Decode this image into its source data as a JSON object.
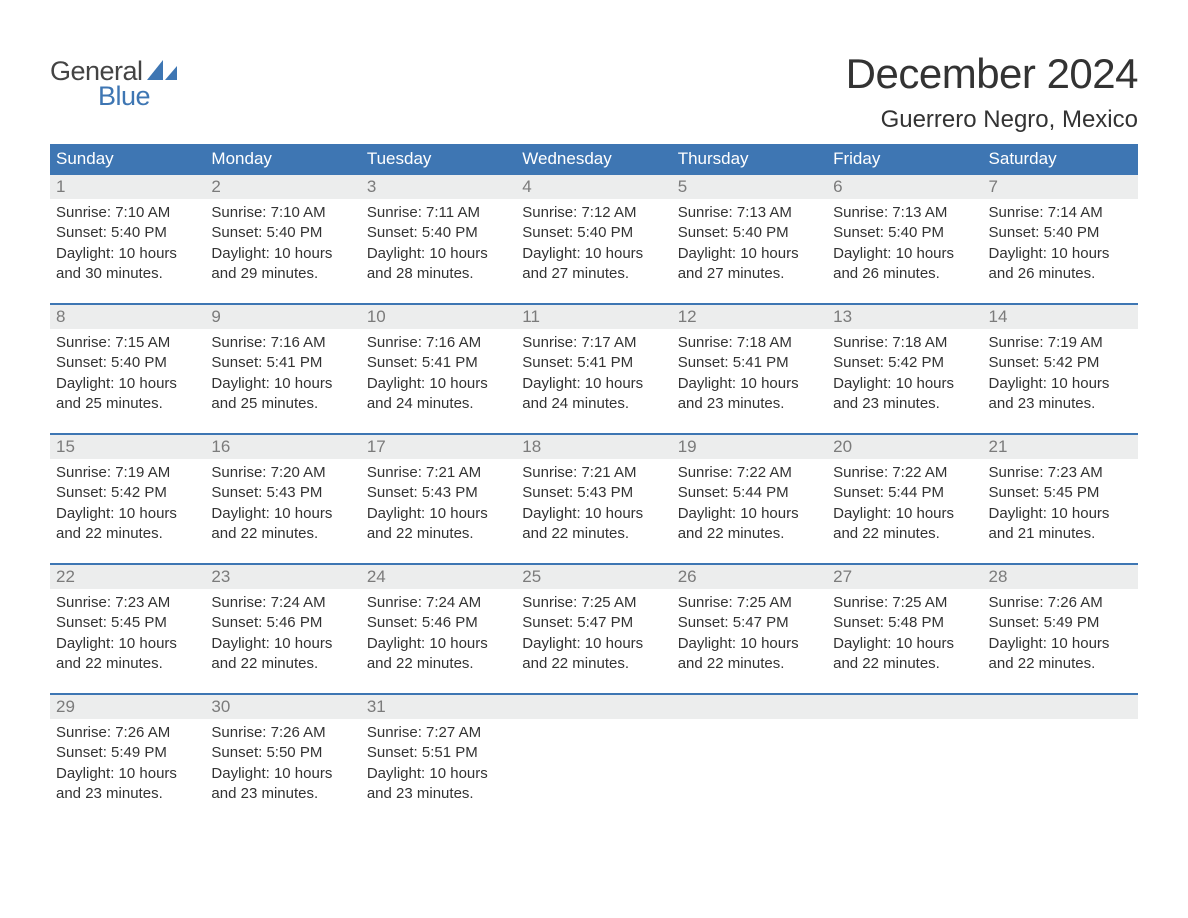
{
  "brand": {
    "text_general": "General",
    "text_blue": "Blue",
    "sail_color": "#3e76b3",
    "text_general_color": "#444444",
    "text_blue_color": "#3e76b3"
  },
  "header": {
    "month_title": "December 2024",
    "location": "Guerrero Negro, Mexico",
    "title_fontsize": 42,
    "location_fontsize": 24,
    "text_color": "#333333"
  },
  "calendar": {
    "header_bg": "#3e76b3",
    "header_text_color": "#ffffff",
    "daynum_bg": "#eceded",
    "daynum_color": "#7b7b7b",
    "row_border_color": "#3e76b3",
    "body_text_color": "#333333",
    "body_fontsize": 15,
    "weekday_fontsize": 17,
    "weekdays": [
      "Sunday",
      "Monday",
      "Tuesday",
      "Wednesday",
      "Thursday",
      "Friday",
      "Saturday"
    ],
    "weeks": [
      [
        {
          "num": "1",
          "sunrise": "Sunrise: 7:10 AM",
          "sunset": "Sunset: 5:40 PM",
          "day1": "Daylight: 10 hours",
          "day2": "and 30 minutes."
        },
        {
          "num": "2",
          "sunrise": "Sunrise: 7:10 AM",
          "sunset": "Sunset: 5:40 PM",
          "day1": "Daylight: 10 hours",
          "day2": "and 29 minutes."
        },
        {
          "num": "3",
          "sunrise": "Sunrise: 7:11 AM",
          "sunset": "Sunset: 5:40 PM",
          "day1": "Daylight: 10 hours",
          "day2": "and 28 minutes."
        },
        {
          "num": "4",
          "sunrise": "Sunrise: 7:12 AM",
          "sunset": "Sunset: 5:40 PM",
          "day1": "Daylight: 10 hours",
          "day2": "and 27 minutes."
        },
        {
          "num": "5",
          "sunrise": "Sunrise: 7:13 AM",
          "sunset": "Sunset: 5:40 PM",
          "day1": "Daylight: 10 hours",
          "day2": "and 27 minutes."
        },
        {
          "num": "6",
          "sunrise": "Sunrise: 7:13 AM",
          "sunset": "Sunset: 5:40 PM",
          "day1": "Daylight: 10 hours",
          "day2": "and 26 minutes."
        },
        {
          "num": "7",
          "sunrise": "Sunrise: 7:14 AM",
          "sunset": "Sunset: 5:40 PM",
          "day1": "Daylight: 10 hours",
          "day2": "and 26 minutes."
        }
      ],
      [
        {
          "num": "8",
          "sunrise": "Sunrise: 7:15 AM",
          "sunset": "Sunset: 5:40 PM",
          "day1": "Daylight: 10 hours",
          "day2": "and 25 minutes."
        },
        {
          "num": "9",
          "sunrise": "Sunrise: 7:16 AM",
          "sunset": "Sunset: 5:41 PM",
          "day1": "Daylight: 10 hours",
          "day2": "and 25 minutes."
        },
        {
          "num": "10",
          "sunrise": "Sunrise: 7:16 AM",
          "sunset": "Sunset: 5:41 PM",
          "day1": "Daylight: 10 hours",
          "day2": "and 24 minutes."
        },
        {
          "num": "11",
          "sunrise": "Sunrise: 7:17 AM",
          "sunset": "Sunset: 5:41 PM",
          "day1": "Daylight: 10 hours",
          "day2": "and 24 minutes."
        },
        {
          "num": "12",
          "sunrise": "Sunrise: 7:18 AM",
          "sunset": "Sunset: 5:41 PM",
          "day1": "Daylight: 10 hours",
          "day2": "and 23 minutes."
        },
        {
          "num": "13",
          "sunrise": "Sunrise: 7:18 AM",
          "sunset": "Sunset: 5:42 PM",
          "day1": "Daylight: 10 hours",
          "day2": "and 23 minutes."
        },
        {
          "num": "14",
          "sunrise": "Sunrise: 7:19 AM",
          "sunset": "Sunset: 5:42 PM",
          "day1": "Daylight: 10 hours",
          "day2": "and 23 minutes."
        }
      ],
      [
        {
          "num": "15",
          "sunrise": "Sunrise: 7:19 AM",
          "sunset": "Sunset: 5:42 PM",
          "day1": "Daylight: 10 hours",
          "day2": "and 22 minutes."
        },
        {
          "num": "16",
          "sunrise": "Sunrise: 7:20 AM",
          "sunset": "Sunset: 5:43 PM",
          "day1": "Daylight: 10 hours",
          "day2": "and 22 minutes."
        },
        {
          "num": "17",
          "sunrise": "Sunrise: 7:21 AM",
          "sunset": "Sunset: 5:43 PM",
          "day1": "Daylight: 10 hours",
          "day2": "and 22 minutes."
        },
        {
          "num": "18",
          "sunrise": "Sunrise: 7:21 AM",
          "sunset": "Sunset: 5:43 PM",
          "day1": "Daylight: 10 hours",
          "day2": "and 22 minutes."
        },
        {
          "num": "19",
          "sunrise": "Sunrise: 7:22 AM",
          "sunset": "Sunset: 5:44 PM",
          "day1": "Daylight: 10 hours",
          "day2": "and 22 minutes."
        },
        {
          "num": "20",
          "sunrise": "Sunrise: 7:22 AM",
          "sunset": "Sunset: 5:44 PM",
          "day1": "Daylight: 10 hours",
          "day2": "and 22 minutes."
        },
        {
          "num": "21",
          "sunrise": "Sunrise: 7:23 AM",
          "sunset": "Sunset: 5:45 PM",
          "day1": "Daylight: 10 hours",
          "day2": "and 21 minutes."
        }
      ],
      [
        {
          "num": "22",
          "sunrise": "Sunrise: 7:23 AM",
          "sunset": "Sunset: 5:45 PM",
          "day1": "Daylight: 10 hours",
          "day2": "and 22 minutes."
        },
        {
          "num": "23",
          "sunrise": "Sunrise: 7:24 AM",
          "sunset": "Sunset: 5:46 PM",
          "day1": "Daylight: 10 hours",
          "day2": "and 22 minutes."
        },
        {
          "num": "24",
          "sunrise": "Sunrise: 7:24 AM",
          "sunset": "Sunset: 5:46 PM",
          "day1": "Daylight: 10 hours",
          "day2": "and 22 minutes."
        },
        {
          "num": "25",
          "sunrise": "Sunrise: 7:25 AM",
          "sunset": "Sunset: 5:47 PM",
          "day1": "Daylight: 10 hours",
          "day2": "and 22 minutes."
        },
        {
          "num": "26",
          "sunrise": "Sunrise: 7:25 AM",
          "sunset": "Sunset: 5:47 PM",
          "day1": "Daylight: 10 hours",
          "day2": "and 22 minutes."
        },
        {
          "num": "27",
          "sunrise": "Sunrise: 7:25 AM",
          "sunset": "Sunset: 5:48 PM",
          "day1": "Daylight: 10 hours",
          "day2": "and 22 minutes."
        },
        {
          "num": "28",
          "sunrise": "Sunrise: 7:26 AM",
          "sunset": "Sunset: 5:49 PM",
          "day1": "Daylight: 10 hours",
          "day2": "and 22 minutes."
        }
      ],
      [
        {
          "num": "29",
          "sunrise": "Sunrise: 7:26 AM",
          "sunset": "Sunset: 5:49 PM",
          "day1": "Daylight: 10 hours",
          "day2": "and 23 minutes."
        },
        {
          "num": "30",
          "sunrise": "Sunrise: 7:26 AM",
          "sunset": "Sunset: 5:50 PM",
          "day1": "Daylight: 10 hours",
          "day2": "and 23 minutes."
        },
        {
          "num": "31",
          "sunrise": "Sunrise: 7:27 AM",
          "sunset": "Sunset: 5:51 PM",
          "day1": "Daylight: 10 hours",
          "day2": "and 23 minutes."
        },
        {
          "empty": true
        },
        {
          "empty": true
        },
        {
          "empty": true
        },
        {
          "empty": true
        }
      ]
    ]
  }
}
